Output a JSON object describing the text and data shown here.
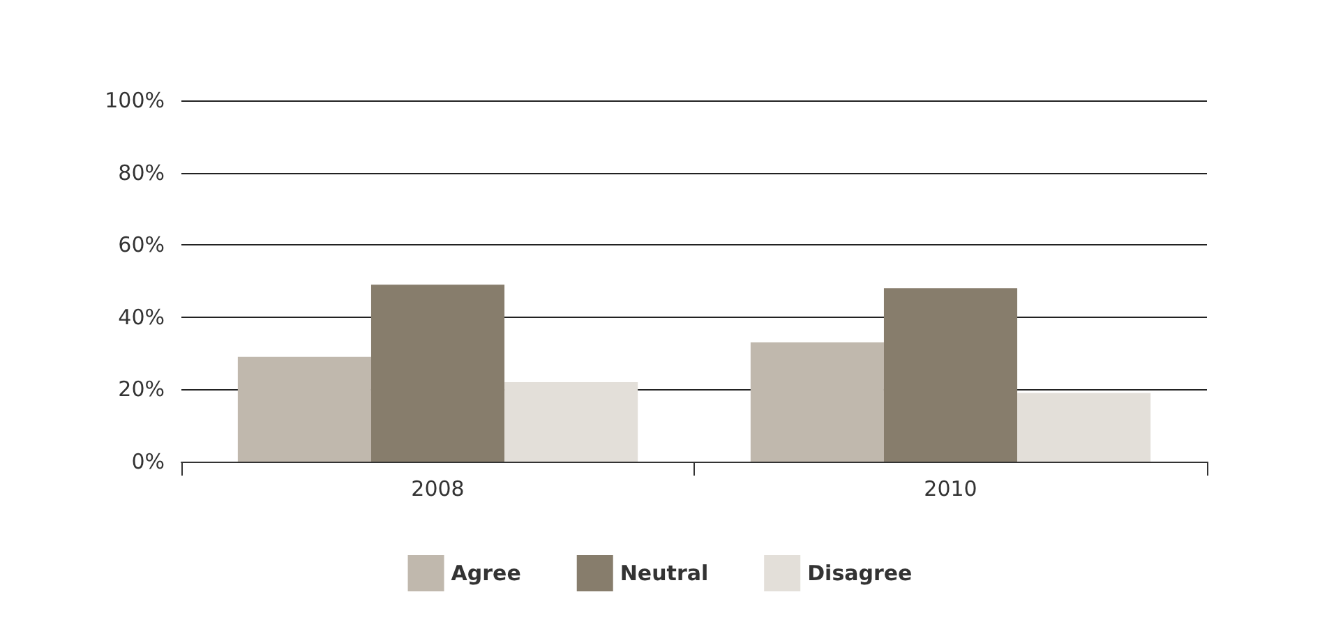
{
  "chart_data": {
    "type": "bar",
    "categories": [
      "2008",
      "2010"
    ],
    "series": [
      {
        "name": "Agree",
        "color": "#c0b8ad",
        "values": [
          29,
          33
        ]
      },
      {
        "name": "Neutral",
        "color": "#877d6c",
        "values": [
          49,
          48
        ]
      },
      {
        "name": "Disagree",
        "color": "#e3dfd9",
        "values": [
          22,
          19
        ]
      }
    ],
    "ylim": [
      0,
      100
    ],
    "yticks": [
      {
        "value": 0,
        "label": "0%"
      },
      {
        "value": 20,
        "label": "20%"
      },
      {
        "value": 40,
        "label": "40%"
      },
      {
        "value": 60,
        "label": "60%"
      },
      {
        "value": 80,
        "label": "80%"
      },
      {
        "value": 100,
        "label": "100%"
      }
    ],
    "grid": "y",
    "legend": "bottom"
  }
}
